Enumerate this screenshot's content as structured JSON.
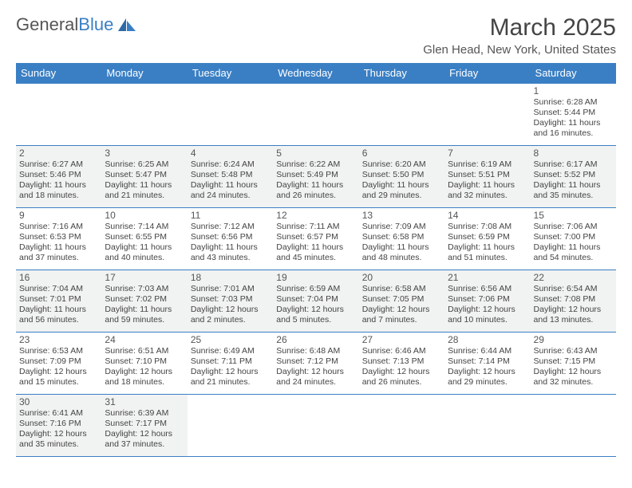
{
  "brand": {
    "part1": "General",
    "part2": "Blue",
    "color_primary": "#3a7fc4",
    "color_text": "#555555"
  },
  "header": {
    "title": "March 2025",
    "location": "Glen Head, New York, United States",
    "title_fontsize": 30,
    "location_fontsize": 15
  },
  "calendar": {
    "header_bg": "#3a7fc4",
    "header_fg": "#ffffff",
    "row_alt_bg": "#f1f2f2",
    "cell_border": "#3a7fc4",
    "font_size_body": 10.5,
    "font_size_daynum": 12,
    "day_headers": [
      "Sunday",
      "Monday",
      "Tuesday",
      "Wednesday",
      "Thursday",
      "Friday",
      "Saturday"
    ],
    "weeks": [
      {
        "alt": false,
        "cells": [
          null,
          null,
          null,
          null,
          null,
          null,
          {
            "num": "1",
            "sunrise": "Sunrise: 6:28 AM",
            "sunset": "Sunset: 5:44 PM",
            "daylight1": "Daylight: 11 hours",
            "daylight2": "and 16 minutes."
          }
        ]
      },
      {
        "alt": true,
        "cells": [
          {
            "num": "2",
            "sunrise": "Sunrise: 6:27 AM",
            "sunset": "Sunset: 5:46 PM",
            "daylight1": "Daylight: 11 hours",
            "daylight2": "and 18 minutes."
          },
          {
            "num": "3",
            "sunrise": "Sunrise: 6:25 AM",
            "sunset": "Sunset: 5:47 PM",
            "daylight1": "Daylight: 11 hours",
            "daylight2": "and 21 minutes."
          },
          {
            "num": "4",
            "sunrise": "Sunrise: 6:24 AM",
            "sunset": "Sunset: 5:48 PM",
            "daylight1": "Daylight: 11 hours",
            "daylight2": "and 24 minutes."
          },
          {
            "num": "5",
            "sunrise": "Sunrise: 6:22 AM",
            "sunset": "Sunset: 5:49 PM",
            "daylight1": "Daylight: 11 hours",
            "daylight2": "and 26 minutes."
          },
          {
            "num": "6",
            "sunrise": "Sunrise: 6:20 AM",
            "sunset": "Sunset: 5:50 PM",
            "daylight1": "Daylight: 11 hours",
            "daylight2": "and 29 minutes."
          },
          {
            "num": "7",
            "sunrise": "Sunrise: 6:19 AM",
            "sunset": "Sunset: 5:51 PM",
            "daylight1": "Daylight: 11 hours",
            "daylight2": "and 32 minutes."
          },
          {
            "num": "8",
            "sunrise": "Sunrise: 6:17 AM",
            "sunset": "Sunset: 5:52 PM",
            "daylight1": "Daylight: 11 hours",
            "daylight2": "and 35 minutes."
          }
        ]
      },
      {
        "alt": false,
        "cells": [
          {
            "num": "9",
            "sunrise": "Sunrise: 7:16 AM",
            "sunset": "Sunset: 6:53 PM",
            "daylight1": "Daylight: 11 hours",
            "daylight2": "and 37 minutes."
          },
          {
            "num": "10",
            "sunrise": "Sunrise: 7:14 AM",
            "sunset": "Sunset: 6:55 PM",
            "daylight1": "Daylight: 11 hours",
            "daylight2": "and 40 minutes."
          },
          {
            "num": "11",
            "sunrise": "Sunrise: 7:12 AM",
            "sunset": "Sunset: 6:56 PM",
            "daylight1": "Daylight: 11 hours",
            "daylight2": "and 43 minutes."
          },
          {
            "num": "12",
            "sunrise": "Sunrise: 7:11 AM",
            "sunset": "Sunset: 6:57 PM",
            "daylight1": "Daylight: 11 hours",
            "daylight2": "and 45 minutes."
          },
          {
            "num": "13",
            "sunrise": "Sunrise: 7:09 AM",
            "sunset": "Sunset: 6:58 PM",
            "daylight1": "Daylight: 11 hours",
            "daylight2": "and 48 minutes."
          },
          {
            "num": "14",
            "sunrise": "Sunrise: 7:08 AM",
            "sunset": "Sunset: 6:59 PM",
            "daylight1": "Daylight: 11 hours",
            "daylight2": "and 51 minutes."
          },
          {
            "num": "15",
            "sunrise": "Sunrise: 7:06 AM",
            "sunset": "Sunset: 7:00 PM",
            "daylight1": "Daylight: 11 hours",
            "daylight2": "and 54 minutes."
          }
        ]
      },
      {
        "alt": true,
        "cells": [
          {
            "num": "16",
            "sunrise": "Sunrise: 7:04 AM",
            "sunset": "Sunset: 7:01 PM",
            "daylight1": "Daylight: 11 hours",
            "daylight2": "and 56 minutes."
          },
          {
            "num": "17",
            "sunrise": "Sunrise: 7:03 AM",
            "sunset": "Sunset: 7:02 PM",
            "daylight1": "Daylight: 11 hours",
            "daylight2": "and 59 minutes."
          },
          {
            "num": "18",
            "sunrise": "Sunrise: 7:01 AM",
            "sunset": "Sunset: 7:03 PM",
            "daylight1": "Daylight: 12 hours",
            "daylight2": "and 2 minutes."
          },
          {
            "num": "19",
            "sunrise": "Sunrise: 6:59 AM",
            "sunset": "Sunset: 7:04 PM",
            "daylight1": "Daylight: 12 hours",
            "daylight2": "and 5 minutes."
          },
          {
            "num": "20",
            "sunrise": "Sunrise: 6:58 AM",
            "sunset": "Sunset: 7:05 PM",
            "daylight1": "Daylight: 12 hours",
            "daylight2": "and 7 minutes."
          },
          {
            "num": "21",
            "sunrise": "Sunrise: 6:56 AM",
            "sunset": "Sunset: 7:06 PM",
            "daylight1": "Daylight: 12 hours",
            "daylight2": "and 10 minutes."
          },
          {
            "num": "22",
            "sunrise": "Sunrise: 6:54 AM",
            "sunset": "Sunset: 7:08 PM",
            "daylight1": "Daylight: 12 hours",
            "daylight2": "and 13 minutes."
          }
        ]
      },
      {
        "alt": false,
        "cells": [
          {
            "num": "23",
            "sunrise": "Sunrise: 6:53 AM",
            "sunset": "Sunset: 7:09 PM",
            "daylight1": "Daylight: 12 hours",
            "daylight2": "and 15 minutes."
          },
          {
            "num": "24",
            "sunrise": "Sunrise: 6:51 AM",
            "sunset": "Sunset: 7:10 PM",
            "daylight1": "Daylight: 12 hours",
            "daylight2": "and 18 minutes."
          },
          {
            "num": "25",
            "sunrise": "Sunrise: 6:49 AM",
            "sunset": "Sunset: 7:11 PM",
            "daylight1": "Daylight: 12 hours",
            "daylight2": "and 21 minutes."
          },
          {
            "num": "26",
            "sunrise": "Sunrise: 6:48 AM",
            "sunset": "Sunset: 7:12 PM",
            "daylight1": "Daylight: 12 hours",
            "daylight2": "and 24 minutes."
          },
          {
            "num": "27",
            "sunrise": "Sunrise: 6:46 AM",
            "sunset": "Sunset: 7:13 PM",
            "daylight1": "Daylight: 12 hours",
            "daylight2": "and 26 minutes."
          },
          {
            "num": "28",
            "sunrise": "Sunrise: 6:44 AM",
            "sunset": "Sunset: 7:14 PM",
            "daylight1": "Daylight: 12 hours",
            "daylight2": "and 29 minutes."
          },
          {
            "num": "29",
            "sunrise": "Sunrise: 6:43 AM",
            "sunset": "Sunset: 7:15 PM",
            "daylight1": "Daylight: 12 hours",
            "daylight2": "and 32 minutes."
          }
        ]
      },
      {
        "alt": true,
        "cells": [
          {
            "num": "30",
            "sunrise": "Sunrise: 6:41 AM",
            "sunset": "Sunset: 7:16 PM",
            "daylight1": "Daylight: 12 hours",
            "daylight2": "and 35 minutes."
          },
          {
            "num": "31",
            "sunrise": "Sunrise: 6:39 AM",
            "sunset": "Sunset: 7:17 PM",
            "daylight1": "Daylight: 12 hours",
            "daylight2": "and 37 minutes."
          },
          null,
          null,
          null,
          null,
          null
        ]
      }
    ]
  }
}
